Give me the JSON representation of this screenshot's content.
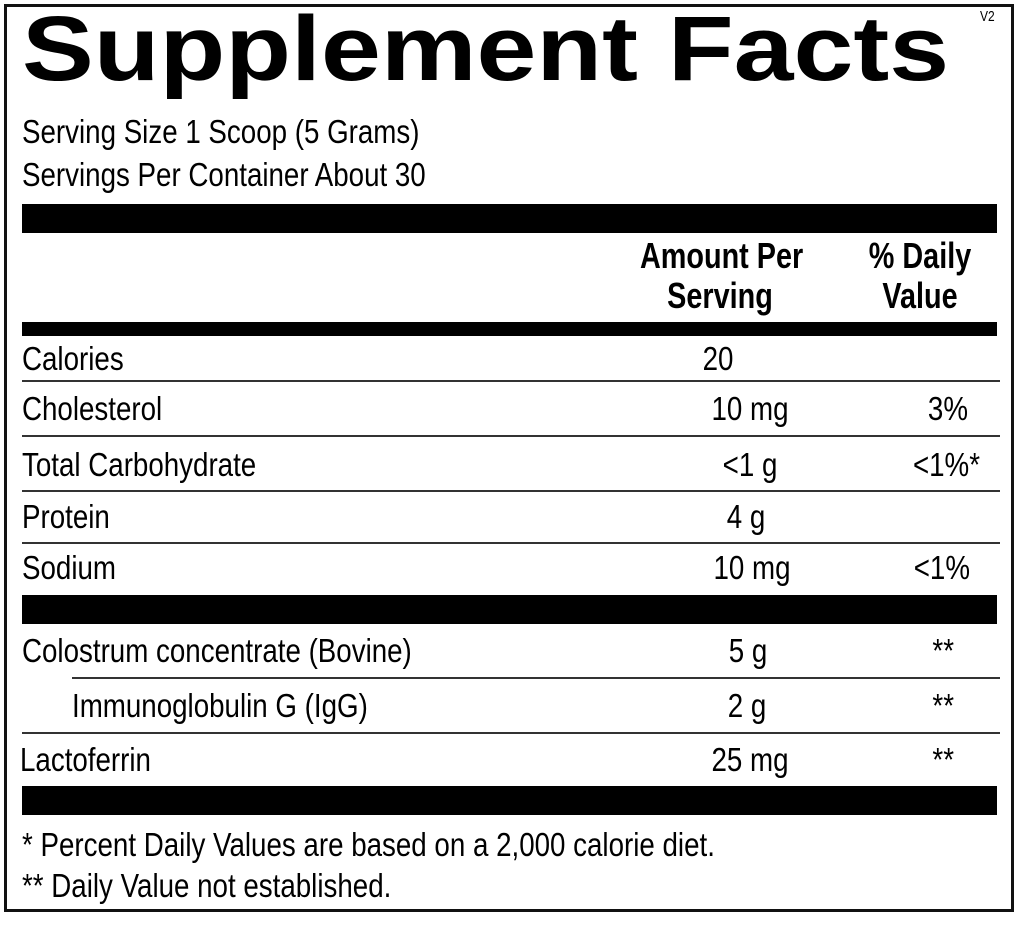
{
  "title": "Supplement Facts",
  "version": "V2",
  "serving_size": "Serving Size 1 Scoop (5 Grams)",
  "servings_per_container": "Servings Per Container About 30",
  "header": {
    "amount_line1": "Amount Per",
    "amount_line2": "Serving",
    "dv_line1": "% Daily",
    "dv_line2": "Value"
  },
  "rows": [
    {
      "name": "Calories",
      "amount": "20",
      "dv": ""
    },
    {
      "name": "Cholesterol",
      "amount": "10 mg",
      "dv": "3%"
    },
    {
      "name": "Total Carbohydrate",
      "amount": "<1 g",
      "dv": "<1%*"
    },
    {
      "name": "Protein",
      "amount": "4 g",
      "dv": ""
    },
    {
      "name": "Sodium",
      "amount": "10 mg",
      "dv": "<1%"
    },
    {
      "name": "Colostrum concentrate (Bovine)",
      "amount": "5 g",
      "dv": "**"
    },
    {
      "name": "Immunoglobulin G (IgG)",
      "amount": "2 g",
      "dv": "**"
    },
    {
      "name": "Lactoferrin",
      "amount": "25 mg",
      "dv": "**"
    }
  ],
  "footnotes": [
    "* Percent Daily Values are based on a 2,000 calorie diet.",
    "** Daily Value not established."
  ]
}
